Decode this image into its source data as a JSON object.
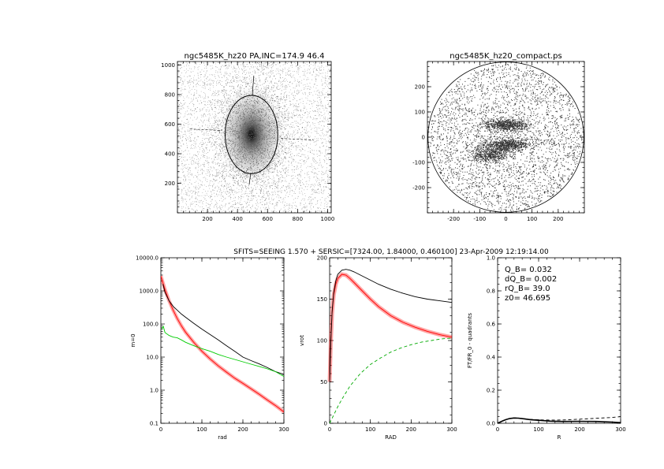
{
  "suptitle": "SFITS=SEEING 1.570 + SERSIC=[7324.00, 1.84000, 0.460100]  23-Apr-2009 12:19:14.00",
  "chart_data": [
    {
      "type": "scatter",
      "title": "ngc5485K_hz20 PA,INC=174.9 46.4",
      "xlim": [
        0,
        1024
      ],
      "ylim": [
        0,
        1024
      ],
      "xticks": [
        "200",
        "400",
        "600",
        "800",
        "1000"
      ],
      "yticks": [
        "200",
        "400",
        "600",
        "800",
        "1000"
      ],
      "ellipse": {
        "center": [
          493,
          530
        ],
        "semi_x": 175,
        "semi_y": 265
      }
    },
    {
      "type": "scatter",
      "title": "ngc5485K_hz20_compact.ps",
      "xlim": [
        -300,
        300
      ],
      "ylim": [
        -300,
        300
      ],
      "xticks": [
        "-200",
        "-100",
        "0",
        "100",
        "200"
      ],
      "yticks": [
        "-200",
        "-100",
        "0",
        "100",
        "200"
      ],
      "circle_radius": 298
    },
    {
      "type": "line",
      "xlabel": "rad",
      "ylabel": "m=0",
      "log_y": true,
      "xlim": [
        0,
        300
      ],
      "ylim": [
        0.1,
        10000
      ],
      "xticks": [
        "0",
        "100",
        "200",
        "300"
      ],
      "yticks": [
        "0.1",
        "1.0",
        "10.0",
        "100.0",
        "1000.0",
        "10000.0"
      ],
      "series": [
        {
          "color": "#000000",
          "x": [
            5,
            10,
            20,
            30,
            40,
            50,
            60,
            80,
            100,
            120,
            140,
            160,
            180,
            200,
            220,
            240,
            260,
            280,
            300
          ],
          "y": [
            1600,
            900,
            500,
            340,
            260,
            200,
            160,
            105,
            70,
            48,
            33,
            22,
            15,
            10,
            7.8,
            6.2,
            4.8,
            3.6,
            3.0
          ]
        },
        {
          "color": "#00cc00",
          "x": [
            2,
            6,
            10,
            20,
            30,
            40,
            50,
            60,
            80,
            100,
            120,
            140,
            160,
            180,
            200,
            220,
            240,
            260,
            280,
            300
          ],
          "y": [
            70,
            85,
            55,
            45,
            40,
            38,
            33,
            28,
            22,
            18,
            15,
            12,
            10,
            8.5,
            7.2,
            6.1,
            5.2,
            4.4,
            3.6,
            2.6
          ]
        },
        {
          "color": "#ff0000",
          "x": [
            0,
            10,
            20,
            30,
            40,
            50,
            60,
            80,
            100,
            120,
            140,
            160,
            180,
            200,
            220,
            240,
            260,
            280,
            300
          ],
          "y": [
            2800,
            1100,
            500,
            260,
            145,
            88,
            57,
            28,
            15,
            8.8,
            5.4,
            3.5,
            2.3,
            1.6,
            1.1,
            0.75,
            0.5,
            0.34,
            0.22
          ]
        }
      ]
    },
    {
      "type": "line",
      "xlabel": "RAD",
      "ylabel": "vrot",
      "xlim": [
        0,
        300
      ],
      "ylim": [
        0,
        200
      ],
      "xticks": [
        "0",
        "100",
        "200",
        "300"
      ],
      "yticks": [
        "0",
        "50",
        "100",
        "150",
        "200"
      ],
      "series": [
        {
          "color": "#000000",
          "x": [
            0,
            3,
            6,
            10,
            15,
            20,
            30,
            40,
            50,
            60,
            80,
            100,
            120,
            150,
            180,
            210,
            240,
            270,
            300
          ],
          "y": [
            50,
            100,
            135,
            158,
            172,
            180,
            185,
            186,
            185,
            183,
            178,
            173,
            168,
            162,
            157,
            153,
            150,
            148,
            146
          ]
        },
        {
          "color": "#ff0000",
          "x": [
            0,
            3,
            6,
            10,
            15,
            20,
            30,
            40,
            50,
            60,
            80,
            100,
            120,
            150,
            180,
            210,
            240,
            270,
            300
          ],
          "y": [
            50,
            100,
            132,
            155,
            168,
            175,
            180,
            179,
            175,
            170,
            160,
            150,
            141,
            130,
            122,
            116,
            111,
            107,
            104
          ]
        },
        {
          "color": "#00aa00",
          "dashed": true,
          "x": [
            0,
            10,
            20,
            30,
            50,
            75,
            100,
            125,
            150,
            175,
            200,
            225,
            250,
            275,
            300
          ],
          "y": [
            0,
            10,
            20,
            29,
            45,
            60,
            71,
            79,
            86,
            91,
            95,
            98,
            100,
            102,
            103
          ]
        }
      ]
    },
    {
      "type": "line",
      "xlabel": "R",
      "ylabel": "FT/FR_0 - quadrants",
      "xlim": [
        0,
        300
      ],
      "ylim": [
        0,
        1.0
      ],
      "xticks": [
        "0",
        "100",
        "200",
        "300"
      ],
      "yticks": [
        "0.0",
        "0.2",
        "0.4",
        "0.6",
        "0.8",
        "1.0"
      ],
      "annotations": [
        "Q_B=  0.032",
        "dQ_B=  0.002",
        "rQ_B=   39.0",
        "z0= 46.695"
      ],
      "series": [
        {
          "color": "#000000",
          "x": [
            0,
            10,
            20,
            30,
            40,
            50,
            60,
            80,
            100,
            130,
            160,
            200,
            240,
            280,
            300
          ],
          "y": [
            0,
            0.012,
            0.022,
            0.029,
            0.032,
            0.031,
            0.028,
            0.022,
            0.018,
            0.013,
            0.011,
            0.012,
            0.011,
            0.007,
            0.004
          ]
        },
        {
          "color": "#000000",
          "dashed": true,
          "x": [
            0,
            10,
            20,
            30,
            40,
            50,
            60,
            80,
            100,
            130,
            160,
            200,
            240,
            280,
            300
          ],
          "y": [
            0,
            0.012,
            0.023,
            0.03,
            0.033,
            0.032,
            0.029,
            0.024,
            0.021,
            0.019,
            0.02,
            0.025,
            0.03,
            0.035,
            0.04
          ]
        }
      ]
    }
  ]
}
